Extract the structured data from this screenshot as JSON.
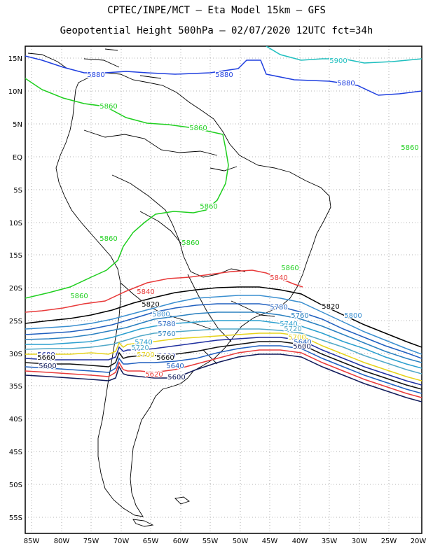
{
  "header": {
    "line1": "CPTEC/INPE/MCT –  Eta Model 15km – GFS",
    "line2": "Geopotential Height 500hPa – 02/07/2020 12UTC fct=34h"
  },
  "axes": {
    "lon_labels": [
      "85W",
      "80W",
      "75W",
      "70W",
      "65W",
      "60W",
      "55W",
      "50W",
      "45W",
      "40W",
      "35W",
      "30W",
      "25W",
      "20W"
    ],
    "lat_labels": [
      "15N",
      "10N",
      "5N",
      "EQ",
      "5S",
      "10S",
      "15S",
      "20S",
      "25S",
      "30S",
      "35S",
      "40S",
      "45S",
      "50S",
      "55S"
    ]
  },
  "contours": [
    {
      "value": "5900",
      "color": "#1fbfbf"
    },
    {
      "value": "5880",
      "color": "#1f3fdf"
    },
    {
      "value": "5860",
      "color": "#1fcf1f"
    },
    {
      "value": "5840",
      "color": "#e83a3a"
    },
    {
      "value": "5820",
      "color": "#000000"
    },
    {
      "value": "5800",
      "color": "#3a8fd0"
    },
    {
      "value": "5780",
      "color": "#1f5fbf"
    },
    {
      "value": "5760",
      "color": "#2a80c0"
    },
    {
      "value": "5740",
      "color": "#2a9fcf"
    },
    {
      "value": "5720",
      "color": "#50a8c8"
    },
    {
      "value": "5700",
      "color": "#e6d21a"
    },
    {
      "value": "5680",
      "color": "#1f2f9f"
    },
    {
      "value": "5660",
      "color": "#101010"
    },
    {
      "value": "5640",
      "color": "#1f5fbf"
    },
    {
      "value": "5620",
      "color": "#e83a3a"
    },
    {
      "value": "5600",
      "color": "#101a5a"
    }
  ]
}
